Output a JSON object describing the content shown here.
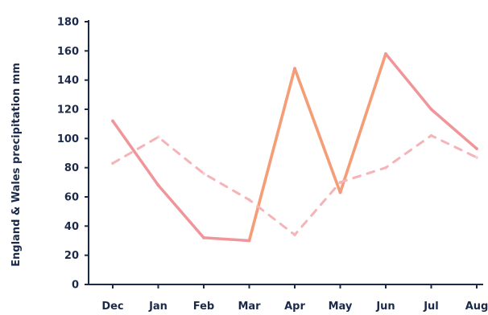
{
  "chart_data": {
    "type": "line",
    "title": "",
    "xlabel": "",
    "ylabel": "England & Wales precipitation mm",
    "categories": [
      "Dec",
      "Jan",
      "Feb",
      "Mar",
      "Apr",
      "May",
      "Jun",
      "Jul",
      "Aug"
    ],
    "yticks": [
      "0",
      "20",
      "40",
      "60",
      "80",
      "100",
      "120",
      "140",
      "160",
      "180"
    ],
    "ylim": [
      0,
      180
    ],
    "grid": false,
    "legend": "none",
    "series": [
      {
        "values": [
          112,
          68,
          32,
          30,
          148,
          63,
          158,
          120,
          93
        ],
        "style": "solid",
        "color": "#f0959a",
        "highlight_color": "#f6a070"
      },
      {
        "values": [
          83,
          101,
          76,
          58,
          34,
          70,
          80,
          102,
          87
        ],
        "style": "dashed",
        "color": "#f4b4b8"
      }
    ]
  }
}
